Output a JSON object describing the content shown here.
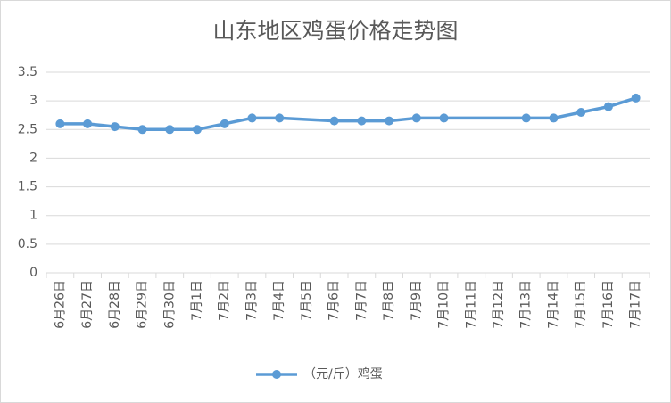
{
  "chart_data": {
    "type": "line",
    "title": "山东地区鸡蛋价格走势图",
    "categories": [
      "6月26日",
      "6月27日",
      "6月28日",
      "6月29日",
      "6月30日",
      "7月1日",
      "7月2日",
      "7月3日",
      "7月4日",
      "7月5日",
      "7月6日",
      "7月7日",
      "7月8日",
      "7月9日",
      "7月10日",
      "7月11日",
      "7月12日",
      "7月13日",
      "7月14日",
      "7月15日",
      "7月16日",
      "7月17日"
    ],
    "series": [
      {
        "name": "（元/斤）鸡蛋",
        "color": "#5b9bd5",
        "values": [
          2.6,
          2.6,
          2.55,
          2.5,
          2.5,
          2.5,
          2.6,
          2.7,
          2.7,
          null,
          2.65,
          2.65,
          2.65,
          2.7,
          2.7,
          null,
          null,
          2.7,
          2.7,
          2.8,
          2.9,
          3.05
        ]
      }
    ],
    "ylim": [
      0,
      3.5
    ],
    "yticks": [
      0,
      0.5,
      1,
      1.5,
      2,
      2.5,
      3,
      3.5
    ],
    "grid": true,
    "span_gaps": true,
    "legend": "bottom"
  }
}
